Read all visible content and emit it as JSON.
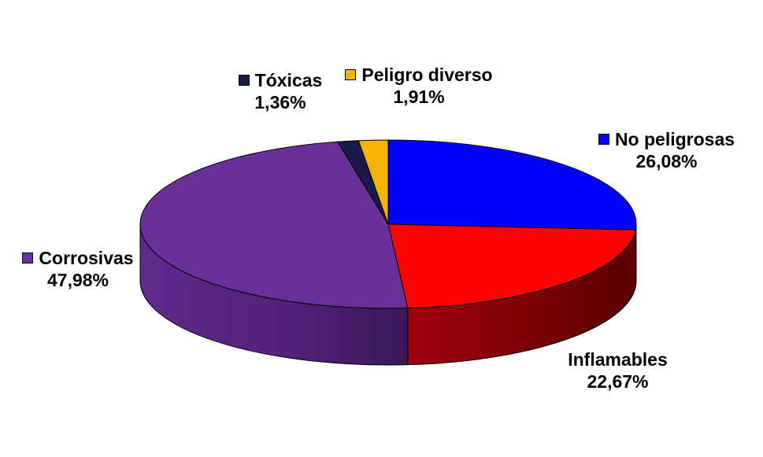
{
  "chart_data": {
    "type": "pie",
    "style": "3d",
    "slices": [
      {
        "label": "No peligrosas",
        "value": 26.08,
        "text": "26,08%",
        "color": "#0000ff"
      },
      {
        "label": "Inflamables",
        "value": 22.67,
        "text": "22,67%",
        "color": "#ff0000"
      },
      {
        "label": "Corrosivas",
        "value": 47.98,
        "text": "47,98%",
        "color": "#6b2f9a"
      },
      {
        "label": "Tóxicas",
        "value": 1.36,
        "text": "1,36%",
        "color": "#1a1a4a"
      },
      {
        "label": "Peligro diverso",
        "value": 1.91,
        "text": "1,91%",
        "color": "#f5b400"
      }
    ],
    "legend": "labels beside slices"
  }
}
